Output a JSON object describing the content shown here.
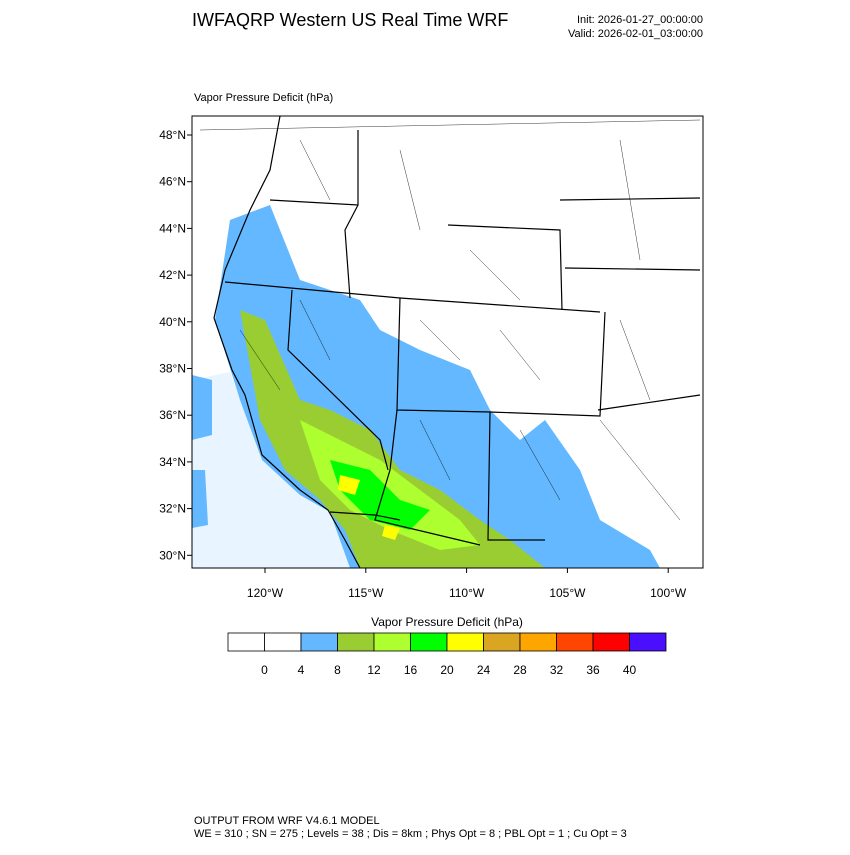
{
  "header": {
    "title": "IWFAQRP Western US Real Time WRF",
    "init": "Init: 2026-01-27_00:00:00",
    "valid": "Valid: 2026-02-01_03:00:00"
  },
  "map": {
    "title": "Vapor Pressure Deficit   (hPa)",
    "latitude_labels": [
      "48°N",
      "46°N",
      "44°N",
      "42°N",
      "40°N",
      "38°N",
      "36°N",
      "34°N",
      "32°N",
      "30°N"
    ],
    "longitude_labels": [
      "120°W",
      "115°W",
      "110°W",
      "105°W",
      "100°W"
    ]
  },
  "colorbar": {
    "title": "Vapor Pressure Deficit  (hPa)",
    "labels": [
      0,
      4,
      8,
      12,
      16,
      20,
      24,
      28,
      32,
      36,
      40
    ],
    "colors": [
      "#ffffff",
      "#ffffff",
      "#63b8ff",
      "#9acd32",
      "#adff2f",
      "#00ff00",
      "#ffff00",
      "#daa520",
      "#ffa500",
      "#ff4500",
      "#ff0000",
      "#4b0fff"
    ]
  },
  "footer": {
    "line1": "OUTPUT FROM WRF V4.6.1 MODEL",
    "line2": "WE = 310 ; SN = 275 ; Levels = 38 ; Dis = 8km ; Phys Opt = 8 ; PBL Opt = 1 ; Cu Opt = 3"
  }
}
